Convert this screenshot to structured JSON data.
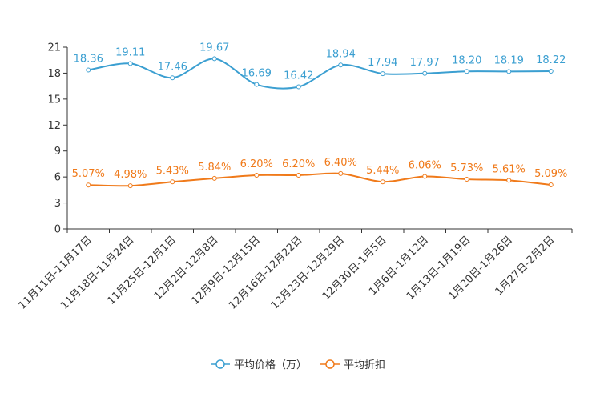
{
  "chart_data": {
    "type": "line",
    "categories": [
      "11月11日-11月17日",
      "11月18日-11月24日",
      "11月25日-12月1日",
      "12月2日-12月8日",
      "12月9日-12月15日",
      "12月16日-12月22日",
      "12月23日-12月29日",
      "12月30日-1月5日",
      "1月6日-1月12日",
      "1月13日-1月19日",
      "1月20日-1月26日",
      "1月27日-2月2日"
    ],
    "ylim": [
      0,
      21
    ],
    "yticks": [
      0,
      3,
      6,
      9,
      12,
      15,
      18,
      21
    ],
    "series": [
      {
        "name": "平均价格（万）",
        "color": "#3b9fd1",
        "values": [
          18.36,
          19.11,
          17.46,
          19.67,
          16.69,
          16.42,
          18.94,
          17.94,
          17.97,
          18.2,
          18.19,
          18.22
        ],
        "labels": [
          "18.36",
          "19.11",
          "17.46",
          "19.67",
          "16.69",
          "16.42",
          "18.94",
          "17.94",
          "17.97",
          "18.20",
          "18.19",
          "18.22"
        ]
      },
      {
        "name": "平均折扣",
        "color": "#f07a1a",
        "values": [
          5.07,
          4.98,
          5.43,
          5.84,
          6.2,
          6.2,
          6.4,
          5.44,
          6.06,
          5.73,
          5.61,
          5.09
        ],
        "labels": [
          "5.07%",
          "4.98%",
          "5.43%",
          "5.84%",
          "6.20%",
          "6.20%",
          "6.40%",
          "5.44%",
          "6.06%",
          "5.73%",
          "5.61%",
          "5.09%"
        ]
      }
    ]
  }
}
